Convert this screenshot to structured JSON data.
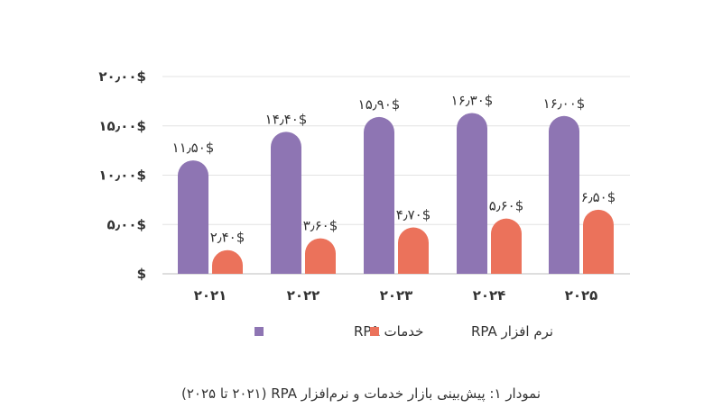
{
  "chart_data": {
    "type": "bar",
    "categories": [
      "۲۰۲۱",
      "۲۰۲۲",
      "۲۰۲۳",
      "۲۰۲۴",
      "۲۰۲۵"
    ],
    "series": [
      {
        "name": "خدمات RPA",
        "color": "#8e75b3",
        "values": [
          11.5,
          14.4,
          15.9,
          16.3,
          16.0
        ],
        "labels": [
          "۱۱٫۵۰$",
          "۱۴٫۴۰$",
          "۱۵٫۹۰$",
          "۱۶٫۳۰$",
          "۱۶٫۰۰$"
        ]
      },
      {
        "name": "نرم افزار RPA",
        "color": "#eb725b",
        "values": [
          2.4,
          3.6,
          4.7,
          5.6,
          6.5
        ],
        "labels": [
          "۲٫۴۰$",
          "۳٫۶۰$",
          "۴٫۷۰$",
          "۵٫۶۰$",
          "۶٫۵۰$"
        ]
      }
    ],
    "ylim": [
      0,
      20
    ],
    "yticks": [
      0,
      5,
      10,
      15,
      20
    ],
    "ytick_labels": [
      "$",
      "۵٫۰۰$",
      "۱۰٫۰۰$",
      "۱۵٫۰۰$",
      "۲۰٫۰۰$"
    ],
    "grid": true,
    "legend_position": "bottom-center",
    "caption": "نمودار ۱: پیش‌بینی بازار خدمات و نرم‌افزار RPA (۲۰۲۱ تا ۲۰۲۵)"
  }
}
